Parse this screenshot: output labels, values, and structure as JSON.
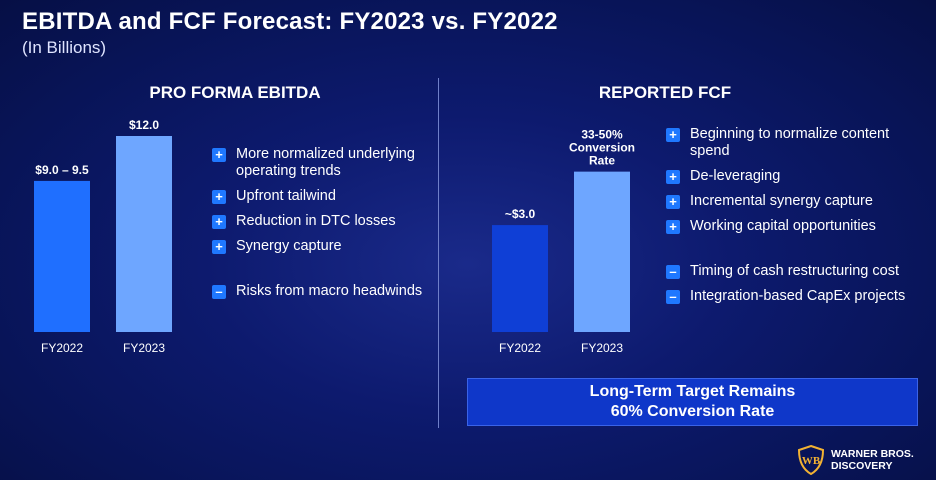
{
  "header": {
    "title": "EBITDA and FCF Forecast: FY2023 vs. FY2022",
    "subtitle": "(In Billions)"
  },
  "chart_data": [
    {
      "type": "bar",
      "title": "PRO FORMA EBITDA",
      "categories": [
        "FY2022",
        "FY2023"
      ],
      "values": [
        9.25,
        12.0
      ],
      "data_labels": [
        "$9.0 – 9.5",
        "$12.0"
      ],
      "ylim": [
        0,
        12
      ],
      "colors": [
        "#1f6fff",
        "#6ea6ff"
      ],
      "grid": false
    },
    {
      "type": "bar",
      "title": "REPORTED FCF",
      "categories": [
        "FY2022",
        "FY2023"
      ],
      "values": [
        3.0,
        4.5
      ],
      "data_labels": [
        "~$3.0",
        "33-50%\nConversion\nRate"
      ],
      "ylim": [
        0,
        5.5
      ],
      "colors": [
        "#0f3fd6",
        "#6ea6ff"
      ],
      "grid": false
    }
  ],
  "ebitda": {
    "bullets": [
      {
        "sign": "+",
        "text": "More normalized underlying operating trends"
      },
      {
        "sign": "+",
        "text": "Upfront tailwind"
      },
      {
        "sign": "+",
        "text": "Reduction in DTC losses"
      },
      {
        "sign": "+",
        "text": "Synergy capture"
      },
      {
        "sign": "–",
        "text": "Risks from macro headwinds"
      }
    ]
  },
  "fcf": {
    "bullets": [
      {
        "sign": "+",
        "text": "Beginning to normalize content spend"
      },
      {
        "sign": "+",
        "text": "De-leveraging"
      },
      {
        "sign": "+",
        "text": "Incremental synergy capture"
      },
      {
        "sign": "+",
        "text": "Working capital opportunities"
      },
      {
        "sign": "–",
        "text": "Timing of cash restructuring cost"
      },
      {
        "sign": "–",
        "text": "Integration-based CapEx projects"
      }
    ]
  },
  "target": {
    "line1": "Long-Term Target Remains",
    "line2": "60% Conversion Rate"
  },
  "logo": {
    "line1": "WARNER BROS.",
    "line2": "DISCOVERY"
  }
}
